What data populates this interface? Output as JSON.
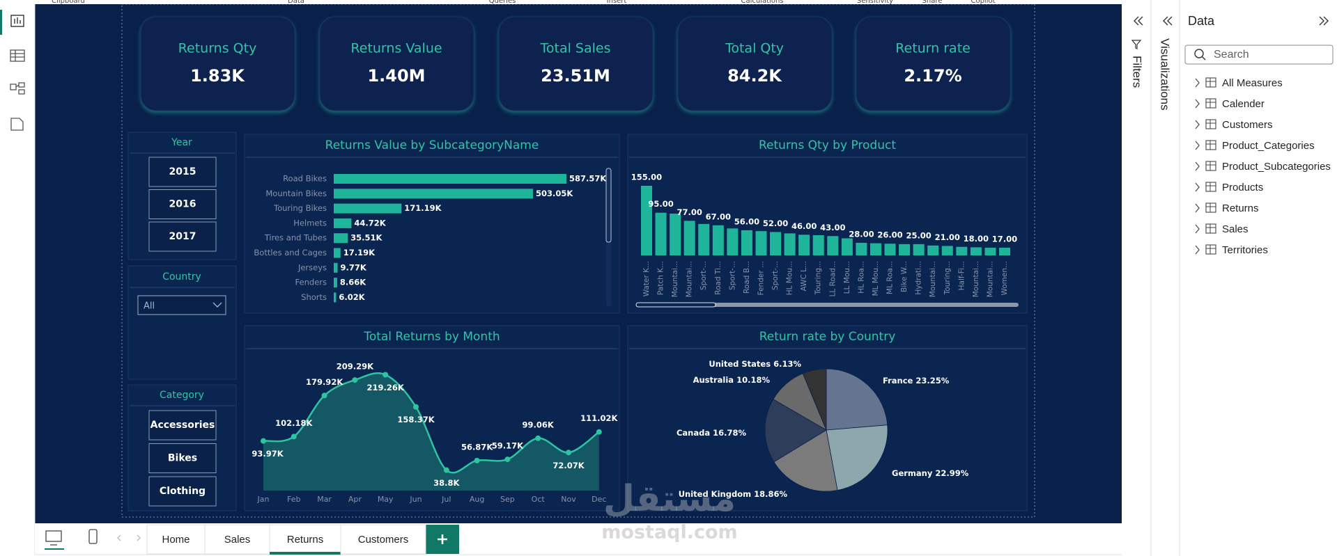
{
  "ribbon": {
    "groups": [
      "Clipboard",
      "Data",
      "Queries",
      "Insert",
      "Calculations",
      "Sensitivity",
      "Share",
      "Copilot"
    ]
  },
  "kpis": [
    {
      "title": "Returns Qty",
      "value": "1.83K"
    },
    {
      "title": "Returns Value",
      "value": "1.40M"
    },
    {
      "title": "Total Sales",
      "value": "23.51M"
    },
    {
      "title": "Total Qty",
      "value": "84.2K"
    },
    {
      "title": "Return rate",
      "value": "2.17%"
    }
  ],
  "slicers": {
    "year": {
      "title": "Year",
      "items": [
        2015,
        2016,
        2017
      ]
    },
    "country": {
      "title": "Country",
      "selected": "All"
    },
    "category": {
      "title": "Category",
      "items": [
        "Accessories",
        "Bikes",
        "Clothing"
      ]
    }
  },
  "charts": [
    {
      "type": "hbar",
      "title": "Returns Value by SubcategoryName",
      "categories": [
        "Road Bikes",
        "Mountain Bikes",
        "Touring Bikes",
        "Helmets",
        "Tires and Tubes",
        "Bottles and Cages",
        "Jerseys",
        "Fenders",
        "Shorts"
      ],
      "values": [
        587.57,
        503.05,
        171.19,
        44.72,
        35.51,
        17.19,
        9.77,
        8.66,
        6.02
      ],
      "value_labels": [
        "587.57K",
        "503.05K",
        "171.19K",
        "44.72K",
        "35.51K",
        "17.19K",
        "9.77K",
        "8.66K",
        "6.02K"
      ],
      "color": "#1fb59b"
    },
    {
      "type": "bar",
      "title": "Returns Qty by Product",
      "categories": [
        "Water K...",
        "Patch K...",
        "Mountai...",
        "Mountai...",
        "Sport-...",
        "Road Ti...",
        "Sport-...",
        "Road B...",
        "Fender ...",
        "Sport-...",
        "HL Mou...",
        "AWC L...",
        "Touring...",
        "LL Road...",
        "LL Mou...",
        "HL Roa...",
        "ML Mou...",
        "ML Roa...",
        "Bike W...",
        "Hydrati...",
        "Mountai...",
        "Touring...",
        "Half-Fi...",
        "Mountai...",
        "Mountai...",
        "Women..."
      ],
      "values": [
        155,
        95,
        93,
        77,
        70,
        67,
        60,
        56,
        54,
        52,
        49,
        46,
        45,
        43,
        38,
        28,
        27,
        26,
        25,
        25,
        22,
        21,
        19,
        18,
        17,
        17
      ],
      "value_labels": [
        "155.00",
        "95.00",
        null,
        "77.00",
        null,
        "67.00",
        null,
        "56.00",
        null,
        "52.00",
        null,
        "46.00",
        null,
        "43.00",
        null,
        "28.00",
        null,
        "26.00",
        null,
        "25.00",
        null,
        "21.00",
        null,
        "18.00",
        null,
        "17.00"
      ],
      "color": "#1fb59b"
    },
    {
      "type": "area",
      "title": "Total Returns by Month",
      "categories": [
        "Jan",
        "Feb",
        "Mar",
        "Apr",
        "May",
        "Jun",
        "Jul",
        "Aug",
        "Sep",
        "Oct",
        "Nov",
        "Dec"
      ],
      "values": [
        93.97,
        102.18,
        179.92,
        209.29,
        219.26,
        158.37,
        38.8,
        56.87,
        59.17,
        99.06,
        72.07,
        111.02
      ],
      "value_labels": [
        "93.97K",
        "102.18K",
        "179.92K",
        "209.29K",
        "219.26K",
        "158.37K",
        "38.8K",
        "56.87K",
        "59.17K",
        "99.06K",
        "72.07K",
        "111.02K"
      ],
      "color": "#2ec4a0"
    },
    {
      "type": "pie",
      "title": "Return rate by Country",
      "categories": [
        "France",
        "Germany",
        "United Kingdom",
        "Canada",
        "Australia",
        "United States"
      ],
      "values": [
        23.25,
        22.99,
        18.86,
        16.78,
        10.18,
        6.13
      ],
      "value_labels": [
        "23.25%",
        "22.99%",
        "18.86%",
        "16.78%",
        "10.18%",
        "6.13%"
      ],
      "colors": [
        "#66758f",
        "#8ea7ad",
        "#7b7b7b",
        "#2d3d5a",
        "#6a6a6a",
        "#333333"
      ]
    }
  ],
  "filters_pane": {
    "title": "Filters"
  },
  "visualizations_pane": {
    "title": "Visualizations"
  },
  "data_pane": {
    "title": "Data",
    "search_placeholder": "Search",
    "tables": [
      "All Measures",
      "Calender",
      "Customers",
      "Product_Categories",
      "Product_Subcategories",
      "Products",
      "Returns",
      "Sales",
      "Territories"
    ]
  },
  "tabs": {
    "items": [
      "Home",
      "Sales",
      "Returns",
      "Customers"
    ],
    "active": 2
  },
  "watermark": {
    "arabic": "مستقل",
    "latin": "mostaql.com"
  }
}
